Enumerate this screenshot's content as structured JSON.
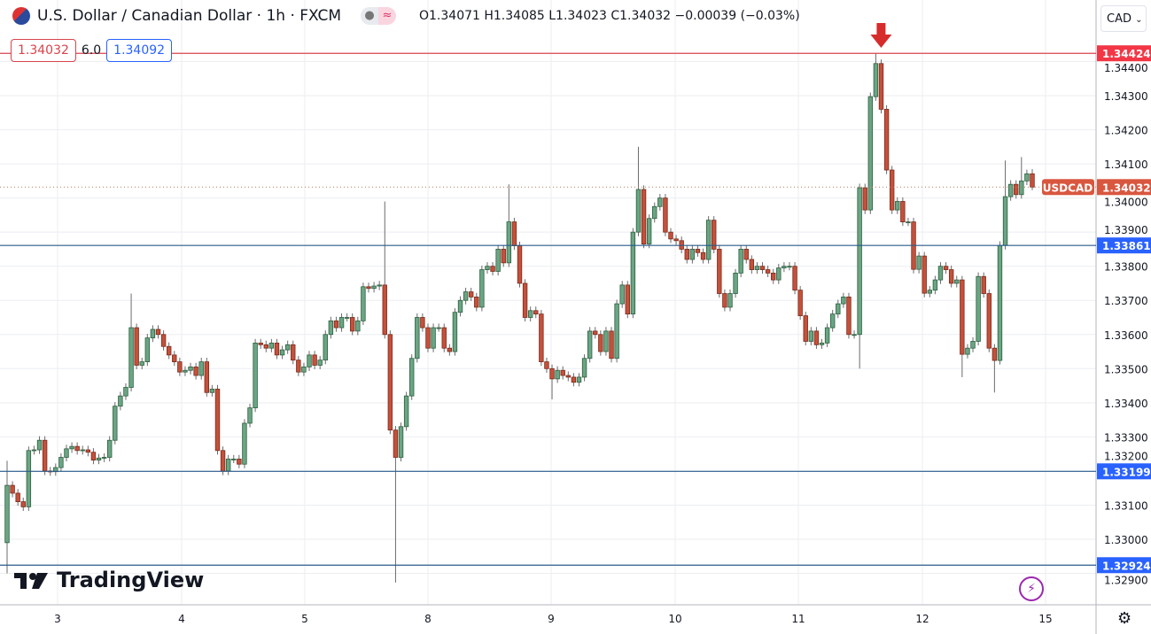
{
  "header": {
    "title": "U.S. Dollar / Canadian Dollar · 1h · FXCM",
    "ohlc": "O1.34071 H1.34085 L1.34023 C1.34032 −0.00039 (−0.03%)"
  },
  "badges": {
    "sell": "1.34032",
    "spread": "6.0",
    "buy": "1.34092"
  },
  "currency_select": "CAD",
  "logo": "TradingView",
  "colors": {
    "up": "#6ba583",
    "up_border": "#2b5f3f",
    "down": "#c4513b",
    "down_border": "#7b2a1d",
    "support_line": "#2a5a8c",
    "resistance_line": "#d9434c",
    "price_badge": "#d9573f"
  },
  "chart_data": {
    "type": "candlestick",
    "symbol_label": "USDCAD",
    "last_price": "1.34032",
    "ylim": [
      1.3285,
      1.3462
    ],
    "y_ticks": [
      "1.32900",
      "1.33000",
      "1.33100",
      "1.33200",
      "1.33300",
      "1.33400",
      "1.33500",
      "1.33600",
      "1.33700",
      "1.33800",
      "1.33900",
      "1.34000",
      "1.34100",
      "1.34200",
      "1.34300",
      "1.34400"
    ],
    "x_ticks": [
      "3",
      "4",
      "5",
      "8",
      "9",
      "10",
      "11",
      "12",
      "15"
    ],
    "first_open": 1.3299,
    "close": [
      1.33158,
      1.33135,
      1.3311,
      1.33095,
      1.3326,
      1.33262,
      1.3329,
      1.332,
      1.33198,
      1.3321,
      1.3324,
      1.33265,
      1.33272,
      1.3326,
      1.33262,
      1.33255,
      1.33232,
      1.33238,
      1.3324,
      1.3329,
      1.3339,
      1.3342,
      1.33445,
      1.3362,
      1.3351,
      1.3352,
      1.3359,
      1.33615,
      1.336,
      1.33565,
      1.3354,
      1.3352,
      1.3349,
      1.33495,
      1.33505,
      1.3348,
      1.3352,
      1.3343,
      1.3344,
      1.3326,
      1.332,
      1.33235,
      1.33235,
      1.3322,
      1.3334,
      1.33385,
      1.33575,
      1.3357,
      1.3356,
      1.33575,
      1.3354,
      1.33555,
      1.3357,
      1.33525,
      1.3349,
      1.33505,
      1.3354,
      1.3351,
      1.33525,
      1.336,
      1.3364,
      1.3362,
      1.3365,
      1.3365,
      1.3361,
      1.3364,
      1.3374,
      1.33735,
      1.33742,
      1.33745,
      1.336,
      1.3332,
      1.3324,
      1.3333,
      1.3342,
      1.3353,
      1.3365,
      1.3362,
      1.3356,
      1.3362,
      1.3362,
      1.3356,
      1.3355,
      1.33665,
      1.337,
      1.33725,
      1.3371,
      1.3368,
      1.3379,
      1.338,
      1.33785,
      1.3385,
      1.3381,
      1.3393,
      1.3386,
      1.3375,
      1.3365,
      1.3367,
      1.3366,
      1.3352,
      1.335,
      1.3347,
      1.33495,
      1.3348,
      1.33475,
      1.3346,
      1.33475,
      1.3353,
      1.3361,
      1.336,
      1.3355,
      1.3361,
      1.3353,
      1.3369,
      1.33745,
      1.3366,
      1.339,
      1.34025,
      1.33865,
      1.3394,
      1.33975,
      1.34,
      1.339,
      1.3388,
      1.33875,
      1.3385,
      1.3382,
      1.3385,
      1.3384,
      1.3382,
      1.33935,
      1.3385,
      1.3372,
      1.3368,
      1.3372,
      1.3378,
      1.3385,
      1.3382,
      1.3379,
      1.338,
      1.3379,
      1.3378,
      1.3376,
      1.33795,
      1.338,
      1.338,
      1.3373,
      1.33655,
      1.3358,
      1.3361,
      1.3357,
      1.33575,
      1.3362,
      1.3366,
      1.3369,
      1.3371,
      1.336,
      1.336,
      1.3403,
      1.33965,
      1.34297,
      1.34394,
      1.3426,
      1.34082,
      1.33965,
      1.3399,
      1.3393,
      1.3393,
      1.33791,
      1.3383,
      1.33721,
      1.3373,
      1.3376,
      1.338,
      1.3379,
      1.3375,
      1.3376,
      1.33542,
      1.3356,
      1.3358,
      1.3377,
      1.3372,
      1.3356,
      1.33524,
      1.33861,
      1.34004,
      1.3404,
      1.3401,
      1.3405,
      1.34071,
      1.34032
    ],
    "highs": {
      "0": 1.3323,
      "23": 1.3372,
      "70": 1.3399,
      "93": 1.3404,
      "117": 1.3415,
      "161": 1.34424,
      "185": 1.3411,
      "188": 1.3412,
      "190": 1.34085
    },
    "lows": {
      "0": 1.329,
      "72": 1.32873,
      "101": 1.3341,
      "158": 1.335,
      "177": 1.33475,
      "183": 1.3343,
      "190": 1.34023
    },
    "horizontal_lines": [
      {
        "price": 1.34424,
        "label": "1.34424",
        "kind": "resistance"
      },
      {
        "price": 1.33861,
        "label": "1.33861",
        "kind": "support"
      },
      {
        "price": 1.33199,
        "label": "1.33199",
        "kind": "support"
      },
      {
        "price": 1.32924,
        "label": "1.32924",
        "kind": "support"
      }
    ],
    "annotation": {
      "type": "down-arrow",
      "at_index": 161
    }
  }
}
